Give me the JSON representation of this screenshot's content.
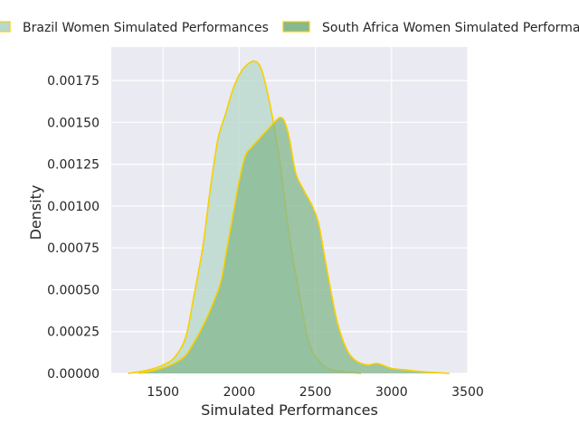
{
  "chart_data": {
    "type": "area",
    "title": "",
    "xlabel": "Simulated Performances",
    "ylabel": "Density",
    "xlim": [
      1160,
      3500
    ],
    "ylim": [
      0,
      0.00195
    ],
    "x_ticks": [
      "1500",
      "2000",
      "2500",
      "3000",
      "3500"
    ],
    "y_ticks": [
      "0.00000",
      "0.00025",
      "0.00050",
      "0.00075",
      "0.00100",
      "0.00125",
      "0.00150",
      "0.00175"
    ],
    "grid": true,
    "legend_position": "top",
    "series": [
      {
        "name": "Brazil Women Simulated Performances",
        "color": "#B7D9CC",
        "edge_color": "#F5D000",
        "points": [
          [
            1270,
            0
          ],
          [
            1400,
            2e-05
          ],
          [
            1500,
            5e-05
          ],
          [
            1580,
            0.0001
          ],
          [
            1650,
            0.00022
          ],
          [
            1700,
            0.00045
          ],
          [
            1760,
            0.00075
          ],
          [
            1810,
            0.0011
          ],
          [
            1860,
            0.0014
          ],
          [
            1910,
            0.00155
          ],
          [
            1960,
            0.0017
          ],
          [
            2010,
            0.0018
          ],
          [
            2060,
            0.00185
          ],
          [
            2100,
            0.001865
          ],
          [
            2140,
            0.00183
          ],
          [
            2180,
            0.0017
          ],
          [
            2220,
            0.00152
          ],
          [
            2270,
            0.00125
          ],
          [
            2310,
            0.00095
          ],
          [
            2350,
            0.0007
          ],
          [
            2400,
            0.00045
          ],
          [
            2440,
            0.00025
          ],
          [
            2480,
            0.00013
          ],
          [
            2520,
            8e-05
          ],
          [
            2560,
            4e-05
          ],
          [
            2610,
            2e-05
          ],
          [
            2700,
            1e-05
          ],
          [
            2800,
            0
          ]
        ]
      },
      {
        "name": "South Africa Women Simulated Performances",
        "color": "#86B98F",
        "edge_color": "#F5D000",
        "points": [
          [
            1340,
            0
          ],
          [
            1450,
            2e-05
          ],
          [
            1550,
            5e-05
          ],
          [
            1640,
            0.0001
          ],
          [
            1700,
            0.00018
          ],
          [
            1760,
            0.00028
          ],
          [
            1820,
            0.0004
          ],
          [
            1880,
            0.00055
          ],
          [
            1920,
            0.00075
          ],
          [
            1960,
            0.00095
          ],
          [
            2000,
            0.00115
          ],
          [
            2040,
            0.0013
          ],
          [
            2080,
            0.00135
          ],
          [
            2130,
            0.0014
          ],
          [
            2180,
            0.00145
          ],
          [
            2230,
            0.0015
          ],
          [
            2270,
            0.00153
          ],
          [
            2300,
            0.0015
          ],
          [
            2330,
            0.0014
          ],
          [
            2370,
            0.0012
          ],
          [
            2420,
            0.0011
          ],
          [
            2480,
            0.001
          ],
          [
            2520,
            0.0009
          ],
          [
            2560,
            0.0007
          ],
          [
            2600,
            0.0005
          ],
          [
            2640,
            0.00032
          ],
          [
            2680,
            0.0002
          ],
          [
            2720,
            0.00012
          ],
          [
            2760,
            8e-05
          ],
          [
            2800,
            6e-05
          ],
          [
            2850,
            5e-05
          ],
          [
            2900,
            6e-05
          ],
          [
            2940,
            5e-05
          ],
          [
            3000,
            3e-05
          ],
          [
            3100,
            2e-05
          ],
          [
            3200,
            1e-05
          ],
          [
            3380,
            0
          ]
        ]
      }
    ]
  }
}
